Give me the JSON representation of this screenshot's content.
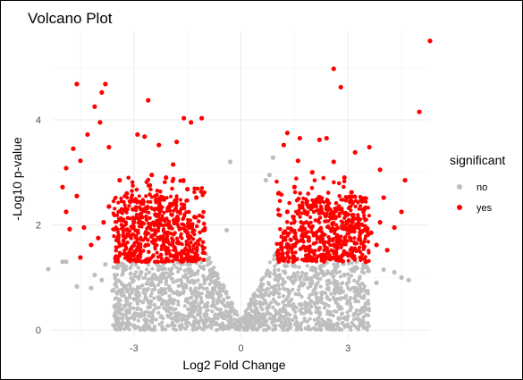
{
  "chart_data": {
    "type": "scatter",
    "title": "Volcano Plot",
    "xlabel": "Log2 Fold Change",
    "ylabel": "-Log10 p-value",
    "xlim": [
      -5.3,
      5.3
    ],
    "ylim": [
      -0.15,
      5.7
    ],
    "x_ticks": [
      -3,
      0,
      3
    ],
    "y_ticks": [
      0,
      2,
      4
    ],
    "grid": true,
    "legend": {
      "title": "significant",
      "position": "right",
      "entries": [
        {
          "label": "no",
          "color": "#bebebe"
        },
        {
          "label": "yes",
          "color": "#ff0000"
        }
      ]
    },
    "series": [
      {
        "name": "no",
        "color": "#bebebe",
        "points": [
          [
            -5.4,
            1.16
          ],
          [
            -4.9,
            1.3
          ],
          [
            -5.0,
            1.3
          ],
          [
            -4.6,
            0.83
          ],
          [
            -4.2,
            0.8
          ],
          [
            -4.1,
            1.05
          ],
          [
            -3.8,
            1.25
          ],
          [
            -3.6,
            0.75
          ],
          [
            -3.9,
            0.95
          ],
          [
            4.5,
            1.0
          ],
          [
            4.7,
            0.95
          ],
          [
            4.3,
            1.1
          ],
          [
            4.0,
            1.15
          ],
          [
            3.8,
            0.9
          ],
          [
            3.5,
            1.2
          ],
          [
            -0.3,
            3.2
          ],
          [
            0.9,
            3.28
          ],
          [
            0.8,
            2.95
          ],
          [
            0.7,
            2.85
          ],
          [
            -0.4,
            1.9
          ],
          [
            -3.2,
            0.55
          ],
          [
            -2.8,
            1.1
          ],
          [
            -2.5,
            0.9
          ],
          [
            3.2,
            0.8
          ],
          [
            2.9,
            1.05
          ]
        ]
      },
      {
        "name": "yes",
        "color": "#ff0000",
        "points": [
          [
            -4.6,
            4.68
          ],
          [
            -3.8,
            4.68
          ],
          [
            -3.9,
            4.52
          ],
          [
            -4.1,
            4.25
          ],
          [
            -3.95,
            3.95
          ],
          [
            -2.6,
            4.37
          ],
          [
            -1.6,
            4.03
          ],
          [
            -1.4,
            3.95
          ],
          [
            -1.1,
            4.03
          ],
          [
            -4.7,
            3.45
          ],
          [
            -4.5,
            3.22
          ],
          [
            -4.9,
            3.08
          ],
          [
            -4.3,
            3.72
          ],
          [
            -3.7,
            3.48
          ],
          [
            -2.9,
            3.72
          ],
          [
            -2.7,
            3.68
          ],
          [
            -2.3,
            3.52
          ],
          [
            -1.8,
            3.58
          ],
          [
            -5.0,
            2.72
          ],
          [
            -4.9,
            2.25
          ],
          [
            -4.6,
            2.55
          ],
          [
            -4.4,
            1.95
          ],
          [
            -4.0,
            1.75
          ],
          [
            -4.8,
            1.92
          ],
          [
            -4.5,
            1.38
          ],
          [
            -4.2,
            1.62
          ],
          [
            -3.85,
            2.05
          ],
          [
            -3.7,
            2.35
          ],
          [
            -3.4,
            2.85
          ],
          [
            -3.2,
            2.6
          ],
          [
            -2.5,
            2.95
          ],
          [
            -2.1,
            2.9
          ],
          [
            -1.9,
            3.15
          ],
          [
            -1.5,
            2.68
          ],
          [
            -1.25,
            2.52
          ],
          [
            -1.6,
            2.38
          ],
          [
            -2.8,
            2.3
          ],
          [
            -3.0,
            2.05
          ],
          [
            -2.4,
            2.2
          ],
          [
            -1.3,
            2.15
          ],
          [
            -3.3,
            1.8
          ],
          [
            -2.0,
            1.95
          ],
          [
            -1.5,
            1.85
          ],
          [
            -2.9,
            1.55
          ],
          [
            -2.2,
            1.6
          ],
          [
            -1.8,
            1.45
          ],
          [
            -1.2,
            1.35
          ],
          [
            -3.5,
            1.4
          ],
          [
            -2.6,
            1.35
          ],
          [
            -1.05,
            1.9
          ],
          [
            5.3,
            5.5
          ],
          [
            2.6,
            4.97
          ],
          [
            2.8,
            4.62
          ],
          [
            5.0,
            4.15
          ],
          [
            2.4,
            3.65
          ],
          [
            1.3,
            3.75
          ],
          [
            1.65,
            3.65
          ],
          [
            2.2,
            3.62
          ],
          [
            3.6,
            3.48
          ],
          [
            3.2,
            3.38
          ],
          [
            1.2,
            3.52
          ],
          [
            3.9,
            3.05
          ],
          [
            4.6,
            2.85
          ],
          [
            4.0,
            2.52
          ],
          [
            4.3,
            1.95
          ],
          [
            4.5,
            2.25
          ],
          [
            3.8,
            1.62
          ],
          [
            4.1,
            1.52
          ],
          [
            3.9,
            2.05
          ],
          [
            3.65,
            1.85
          ],
          [
            3.1,
            2.62
          ],
          [
            3.4,
            2.45
          ],
          [
            2.9,
            2.9
          ],
          [
            2.6,
            3.2
          ],
          [
            2.0,
            3.0
          ],
          [
            1.6,
            3.22
          ],
          [
            1.5,
            2.72
          ],
          [
            1.05,
            2.6
          ],
          [
            1.85,
            2.45
          ],
          [
            2.4,
            2.3
          ],
          [
            3.0,
            2.2
          ],
          [
            3.5,
            1.3
          ],
          [
            3.2,
            1.65
          ],
          [
            1.2,
            1.85
          ],
          [
            1.7,
            1.95
          ],
          [
            2.2,
            1.9
          ],
          [
            2.7,
            1.7
          ],
          [
            1.4,
            1.55
          ],
          [
            2.0,
            1.5
          ],
          [
            2.5,
            1.35
          ],
          [
            1.1,
            1.35
          ],
          [
            2.95,
            1.45
          ],
          [
            1.9,
            1.7
          ],
          [
            1.3,
            2.25
          ],
          [
            3.3,
            1.95
          ]
        ]
      }
    ]
  }
}
